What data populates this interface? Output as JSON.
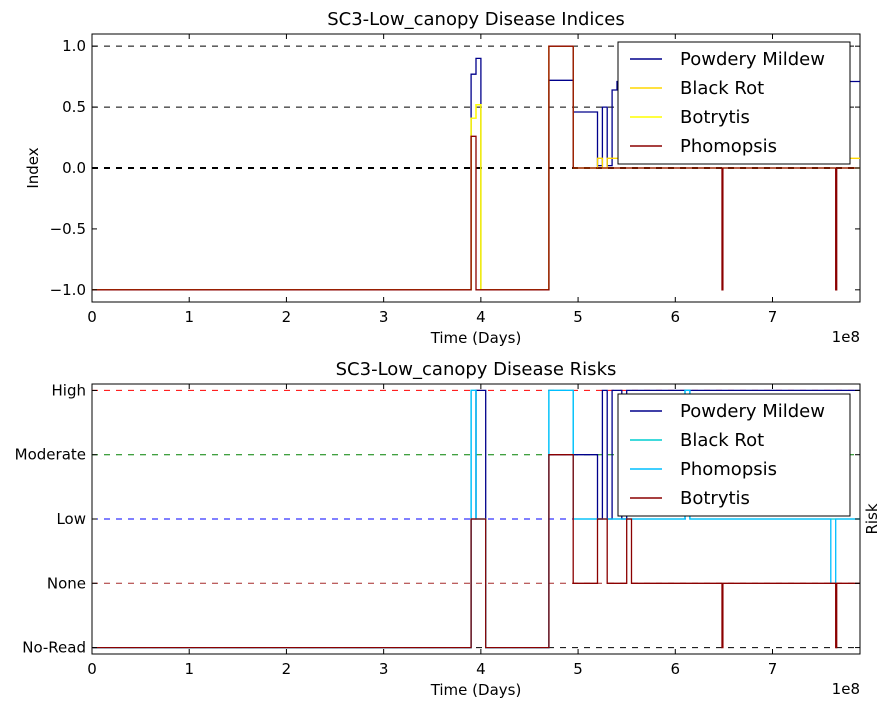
{
  "chart_data": [
    {
      "type": "line",
      "title": "SC3-Low_canopy Disease Indices",
      "xlabel": "Time (Days)",
      "ylabel": "Index",
      "x_offset_label": "1e8",
      "xlim": [
        0,
        7.9
      ],
      "ylim": [
        -1.1,
        1.1
      ],
      "x_ticks": [
        "0",
        "1",
        "2",
        "3",
        "4",
        "5",
        "6",
        "7"
      ],
      "y_ticks": [
        "−1.0",
        "−0.5",
        "0.0",
        "0.5",
        "1.0"
      ],
      "grid": false,
      "legend_placement": "top-right",
      "reference_lines": [
        {
          "y": 1.0,
          "color": "#000000",
          "dash": true
        },
        {
          "y": 0.5,
          "color": "#000000",
          "dash": true
        },
        {
          "y": 0.0,
          "color": "#000000",
          "dash": true,
          "bold": true
        }
      ],
      "series": [
        {
          "name": "Powdery Mildew",
          "color": "#00008b",
          "x": [
            0,
            3.9,
            3.9,
            3.95,
            3.95,
            4.0,
            4.0,
            4.05,
            4.05,
            4.7,
            4.7,
            4.95,
            4.95,
            5.2,
            5.2,
            5.25,
            5.25,
            5.3,
            5.3,
            5.35,
            5.35,
            5.4,
            5.4,
            7.9
          ],
          "y": [
            -1,
            -1,
            0.77,
            0.77,
            0.9,
            0.9,
            -1,
            -1,
            -1,
            -1,
            0.72,
            0.72,
            0.46,
            0.46,
            0.02,
            0.02,
            0.5,
            0.5,
            0.02,
            0.02,
            0.64,
            0.64,
            0.71,
            0.71
          ]
        },
        {
          "name": "Black Rot",
          "color": "#ffd700",
          "x": [
            0,
            3.9,
            3.9,
            3.95,
            3.95,
            4.0,
            4.0,
            4.05,
            4.05,
            4.7,
            4.7,
            4.95,
            4.95,
            5.2,
            5.2,
            5.25,
            5.25,
            5.3,
            5.3,
            7.9
          ],
          "y": [
            -1,
            -1,
            0.41,
            0.41,
            0.52,
            0.52,
            -1,
            -1,
            -1,
            -1,
            1.0,
            1.0,
            0.0,
            0.0,
            0.08,
            0.08,
            0.0,
            0.0,
            0.08,
            0.08
          ]
        },
        {
          "name": "Botrytis",
          "color": "#ffff00",
          "x": [
            0,
            3.9,
            3.9,
            3.95,
            3.95,
            4.0,
            4.0,
            4.05,
            4.05,
            4.7,
            4.7,
            4.95,
            4.95,
            7.9
          ],
          "y": [
            -1,
            -1,
            0.41,
            0.41,
            0.52,
            0.52,
            -1,
            -1,
            -1,
            -1,
            1.0,
            1.0,
            0.0,
            0.0
          ]
        },
        {
          "name": "Phomopsis",
          "color": "#8b0000",
          "x": [
            0,
            3.9,
            3.9,
            3.95,
            3.95,
            4.05,
            4.05,
            4.7,
            4.7,
            4.95,
            4.95,
            6.48,
            6.48,
            6.49,
            6.49,
            7.65,
            7.65,
            7.66,
            7.66,
            7.9
          ],
          "y": [
            -1,
            -1,
            0.26,
            0.26,
            -1,
            -1,
            -1,
            -1,
            1.0,
            1.0,
            0.0,
            0.0,
            -1,
            -1,
            0.0,
            0.0,
            -1,
            -1,
            0.0,
            0.0
          ]
        }
      ]
    },
    {
      "type": "line",
      "title": "SC3-Low_canopy Disease Risks",
      "xlabel": "Time (Days)",
      "ylabel": "Risk",
      "x_offset_label": "1e8",
      "xlim": [
        0,
        7.9
      ],
      "ylim": [
        -0.1,
        4.1
      ],
      "x_ticks": [
        "0",
        "1",
        "2",
        "3",
        "4",
        "5",
        "6",
        "7"
      ],
      "y_categories": [
        "No-Read",
        "None",
        "Low",
        "Moderate",
        "High"
      ],
      "grid": false,
      "legend_placement": "top-right",
      "reference_lines": [
        {
          "y": 4,
          "color": "#ff0000",
          "dash": true
        },
        {
          "y": 3,
          "color": "#008000",
          "dash": true
        },
        {
          "y": 2,
          "color": "#0000ff",
          "dash": true
        },
        {
          "y": 1,
          "color": "#a52a2a",
          "dash": true
        },
        {
          "y": 0,
          "color": "#000000",
          "dash": true
        }
      ],
      "series": [
        {
          "name": "Powdery Mildew",
          "color": "#00008b",
          "x": [
            0,
            3.9,
            3.9,
            3.95,
            3.95,
            4.05,
            4.05,
            4.7,
            4.7,
            5.2,
            5.2,
            5.25,
            5.25,
            5.3,
            5.3,
            5.35,
            5.35,
            5.45,
            5.45,
            5.5,
            5.5,
            7.9
          ],
          "y": [
            0,
            0,
            2,
            2,
            4,
            4,
            0,
            0,
            3,
            3,
            2,
            2,
            4,
            4,
            2,
            2,
            4,
            4,
            2,
            2,
            4,
            4
          ]
        },
        {
          "name": "Black Rot",
          "color": "#00ced1",
          "x": [
            0,
            3.9,
            3.9,
            3.95,
            3.95,
            4.05,
            4.05,
            4.7,
            4.7,
            4.95,
            4.95,
            5.2,
            5.2,
            6.1,
            6.1,
            6.15,
            6.15,
            7.9
          ],
          "y": [
            0,
            0,
            4,
            4,
            2,
            2,
            0,
            0,
            4,
            4,
            2,
            2,
            2,
            2,
            4,
            4,
            2,
            2
          ]
        },
        {
          "name": "Phomopsis",
          "color": "#00bfff",
          "x": [
            0,
            3.9,
            3.9,
            3.95,
            3.95,
            4.05,
            4.05,
            4.7,
            4.7,
            4.95,
            4.95,
            6.1,
            6.1,
            6.15,
            6.15,
            7.6,
            7.6,
            7.65,
            7.65,
            7.9
          ],
          "y": [
            0,
            0,
            4,
            4,
            2,
            2,
            0,
            0,
            4,
            4,
            2,
            2,
            4,
            4,
            2,
            2,
            1,
            1,
            2,
            2
          ]
        },
        {
          "name": "Botrytis",
          "color": "#8b0000",
          "x": [
            0,
            3.9,
            3.9,
            3.95,
            3.95,
            4.05,
            4.05,
            4.7,
            4.7,
            4.95,
            4.95,
            5.2,
            5.2,
            5.3,
            5.3,
            5.5,
            5.5,
            5.55,
            5.55,
            6.48,
            6.48,
            6.49,
            6.49,
            7.65,
            7.65,
            7.66,
            7.66,
            7.9
          ],
          "y": [
            0,
            0,
            2,
            2,
            2,
            2,
            0,
            0,
            3,
            3,
            1,
            1,
            2,
            2,
            1,
            1,
            2,
            2,
            1,
            1,
            0,
            0,
            1,
            1,
            0,
            0,
            1,
            1
          ]
        }
      ]
    }
  ]
}
